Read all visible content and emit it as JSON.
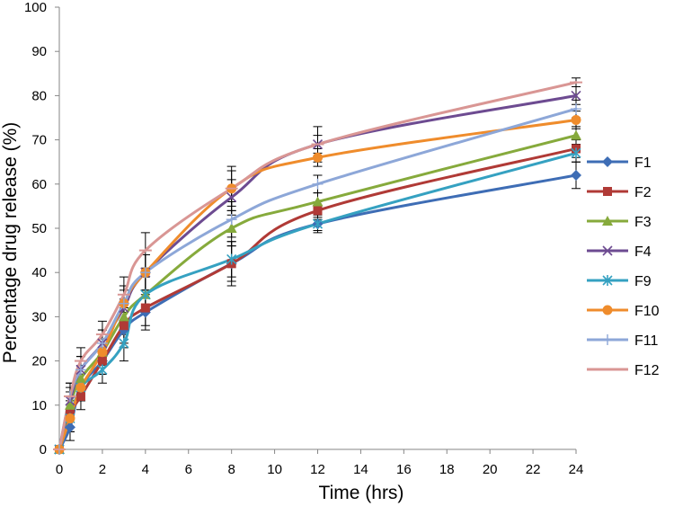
{
  "chart_data": {
    "type": "line",
    "title": "",
    "xlabel": "Time (hrs)",
    "ylabel": "Percentage drug release (%)",
    "xlim": [
      0,
      24
    ],
    "ylim": [
      0,
      100
    ],
    "xticks": [
      0,
      2,
      4,
      6,
      8,
      10,
      12,
      14,
      16,
      18,
      20,
      22,
      24
    ],
    "yticks": [
      0,
      10,
      20,
      30,
      40,
      50,
      60,
      70,
      80,
      90,
      100
    ],
    "grid": false,
    "legend_position": "right",
    "x": [
      0,
      0.5,
      1,
      2,
      3,
      4,
      8,
      12,
      24
    ],
    "series": [
      {
        "name": "F1",
        "color": "#3e6db5",
        "marker": "diamond",
        "values": [
          0,
          5,
          14,
          20,
          27,
          31,
          42,
          51,
          62
        ],
        "error": [
          0,
          3,
          3,
          3,
          4,
          4,
          5,
          1.5,
          3
        ]
      },
      {
        "name": "F2",
        "color": "#b03a36",
        "marker": "square",
        "values": [
          0,
          8,
          12,
          20,
          28,
          32,
          42,
          54,
          68
        ],
        "error": [
          0,
          3,
          3,
          3,
          4,
          4,
          4,
          2,
          2
        ]
      },
      {
        "name": "F3",
        "color": "#86aa3c",
        "marker": "triangle",
        "values": [
          0,
          10,
          16,
          22,
          30,
          35,
          50,
          56,
          71
        ],
        "error": [
          0,
          3,
          3,
          3,
          4,
          4,
          4,
          2,
          2
        ]
      },
      {
        "name": "F4",
        "color": "#6d4b91",
        "marker": "x",
        "values": [
          0,
          11,
          18,
          24,
          32,
          40,
          57,
          69,
          80
        ],
        "error": [
          0,
          3,
          3,
          3,
          4,
          4,
          4,
          2,
          2
        ]
      },
      {
        "name": "F9",
        "color": "#35a1c1",
        "marker": "star",
        "values": [
          0,
          7,
          14,
          18,
          24,
          35,
          43,
          51,
          67
        ],
        "error": [
          0,
          3,
          3,
          3,
          4,
          4,
          4,
          2,
          2
        ]
      },
      {
        "name": "F10",
        "color": "#ef8c2c",
        "marker": "circle",
        "values": [
          0,
          7,
          14,
          22,
          33,
          40,
          59,
          66,
          74.5
        ],
        "error": [
          0,
          3,
          3,
          3,
          4,
          4,
          4,
          2,
          2
        ]
      },
      {
        "name": "F11",
        "color": "#8da7d8",
        "marker": "plus",
        "values": [
          0,
          12,
          18,
          24,
          33,
          40,
          52,
          60,
          77
        ],
        "error": [
          0,
          3,
          3,
          3,
          4,
          4,
          4,
          2,
          2
        ]
      },
      {
        "name": "F12",
        "color": "#d99694",
        "marker": "dash",
        "values": [
          0,
          12,
          20,
          26,
          35,
          45,
          59,
          69,
          83
        ],
        "error": [
          0,
          3,
          3,
          3,
          4,
          4,
          5,
          4,
          1
        ]
      }
    ]
  }
}
